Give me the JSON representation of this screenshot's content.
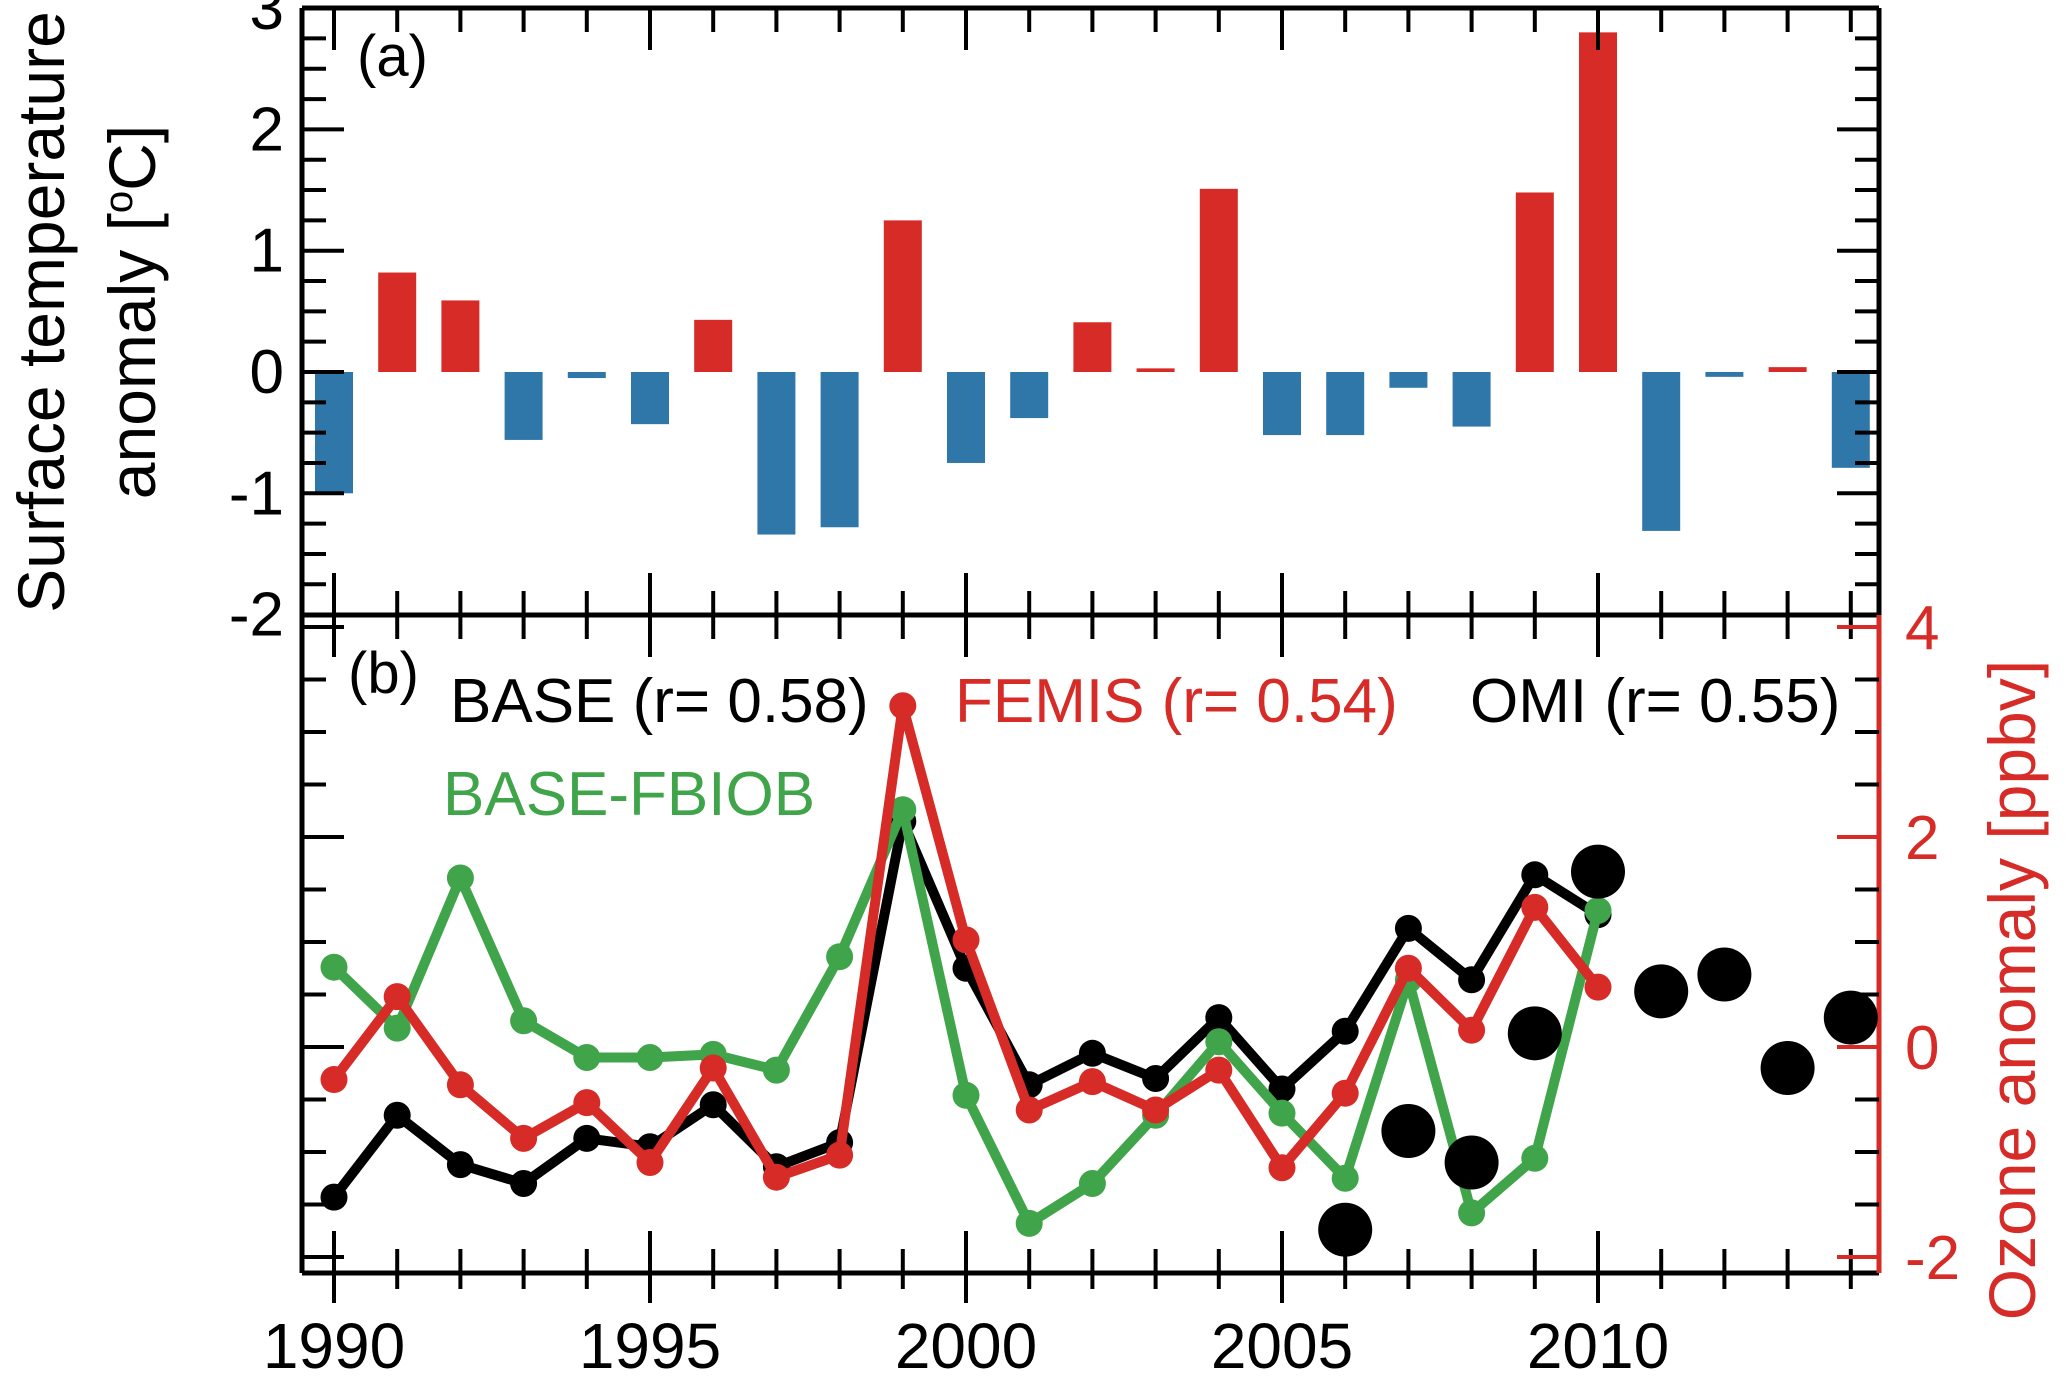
{
  "figure": {
    "background": "#ffffff"
  },
  "colors": {
    "positive_bar": "#d62b26",
    "negative_bar": "#3077a9",
    "base_line": "#000000",
    "femis_line": "#d62b26",
    "base_fbiob_line": "#3fa44a",
    "omi_dot": "#000000",
    "right_axis": "#d62b26"
  },
  "chart_data": [
    {
      "type": "bar",
      "panel_label": "(a)",
      "ylabel_line1": "Surface temperature",
      "ylabel_line2_prefix": "anomaly [",
      "ylabel_sup": "o",
      "ylabel_line2_suffix": "C]",
      "categories": [
        1990,
        1991,
        1992,
        1993,
        1994,
        1995,
        1996,
        1997,
        1998,
        1999,
        2000,
        2001,
        2002,
        2003,
        2004,
        2005,
        2006,
        2007,
        2008,
        2009,
        2010,
        2011,
        2012,
        2013,
        2014
      ],
      "values": [
        -1.0,
        0.82,
        0.59,
        -0.56,
        -0.05,
        -0.43,
        0.43,
        -1.34,
        -1.28,
        1.25,
        -0.75,
        -0.38,
        0.41,
        0.03,
        1.51,
        -0.52,
        -0.52,
        -0.13,
        -0.45,
        1.48,
        2.8,
        -1.31,
        -0.04,
        0.04,
        -0.79
      ],
      "ylim": [
        -2,
        3
      ],
      "yticks": [
        3,
        2,
        1,
        0,
        -1,
        -2
      ],
      "ytick_labels": [
        "3",
        "2",
        "1",
        "0",
        "-1",
        "-2"
      ],
      "y_minor_step": 0.25,
      "positive_color": "#d62b26",
      "negative_color": "#3077a9",
      "grid": false
    },
    {
      "type": "line",
      "panel_label": "(b)",
      "ylabel": "Ozone anomaly [ppbv]",
      "x": [
        1990,
        1991,
        1992,
        1993,
        1994,
        1995,
        1996,
        1997,
        1998,
        1999,
        2000,
        2001,
        2002,
        2003,
        2004,
        2005,
        2006,
        2007,
        2008,
        2009,
        2010
      ],
      "series": [
        {
          "name": "BASE",
          "legend_label": "BASE (r= 0.58)",
          "color": "#000000",
          "values": [
            -1.43,
            -0.65,
            -1.12,
            -1.3,
            -0.87,
            -0.95,
            -0.55,
            -1.14,
            -0.91,
            2.15,
            0.75,
            -0.36,
            -0.06,
            -0.3,
            0.28,
            -0.4,
            0.15,
            1.13,
            0.64,
            1.64,
            1.26
          ]
        },
        {
          "name": "FEMIS",
          "legend_label": "FEMIS (r= 0.54)",
          "color": "#d62b26",
          "values": [
            -0.31,
            0.48,
            -0.36,
            -0.87,
            -0.53,
            -1.1,
            -0.2,
            -1.24,
            -1.03,
            3.25,
            1.02,
            -0.6,
            -0.33,
            -0.6,
            -0.22,
            -1.15,
            -0.44,
            0.75,
            0.16,
            1.33,
            0.57
          ]
        },
        {
          "name": "BASE-FBIOB",
          "legend_label": "BASE-FBIOB",
          "color": "#3fa44a",
          "values": [
            0.76,
            0.18,
            1.61,
            0.25,
            -0.1,
            -0.1,
            -0.07,
            -0.22,
            0.86,
            2.26,
            -0.46,
            -1.68,
            -1.3,
            -0.65,
            0.05,
            -0.63,
            -1.25,
            0.64,
            -1.58,
            -1.06,
            1.3
          ]
        }
      ],
      "scatter": {
        "name": "OMI",
        "legend_label": "OMI (r= 0.55)",
        "color": "#000000",
        "x": [
          2006,
          2007,
          2008,
          2009,
          2010,
          2011,
          2012,
          2013,
          2014
        ],
        "values": [
          -1.74,
          -0.8,
          -1.1,
          0.13,
          1.67,
          0.53,
          0.69,
          -0.2,
          0.28
        ]
      },
      "ylim": [
        -2.15,
        4.1
      ],
      "yticks": [
        4,
        2,
        0,
        -2
      ],
      "ytick_labels": [
        "4",
        "2",
        "0",
        "-2"
      ],
      "y_minor_step": 0.5,
      "xticks_major": [
        1990,
        1995,
        2000,
        2005,
        2010
      ],
      "xtick_labels": [
        "1990",
        "1995",
        "2000",
        "2005",
        "2010"
      ],
      "x_minor_step": 1,
      "xlim": [
        1989.5,
        2014.45
      ],
      "legend_position": "top-inside",
      "grid": false
    }
  ]
}
